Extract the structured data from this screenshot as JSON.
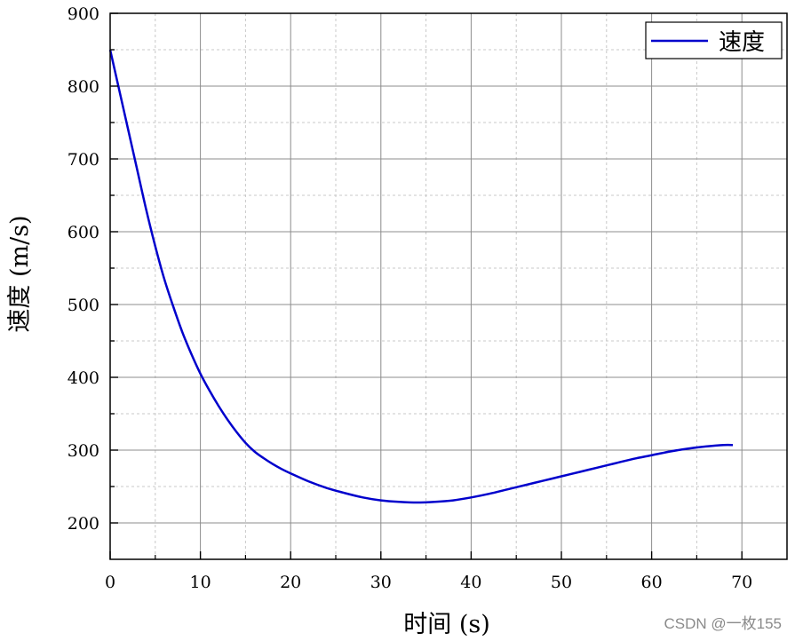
{
  "chart_data": {
    "type": "line",
    "xlabel": "时间 (s)",
    "ylabel": "速度 (m/s)",
    "xlim": [
      0,
      75
    ],
    "ylim": [
      150,
      900
    ],
    "x_ticks": [
      0,
      10,
      20,
      30,
      40,
      50,
      60,
      70
    ],
    "y_ticks": [
      200,
      300,
      400,
      500,
      600,
      700,
      800,
      900
    ],
    "grid": true,
    "legend_position": "top-right",
    "series": [
      {
        "name": "速度",
        "color": "#0000cc",
        "x": [
          0,
          1,
          2,
          3,
          4,
          5,
          6,
          7,
          8,
          9,
          10,
          11,
          12,
          13,
          14,
          15,
          16,
          17,
          18,
          19,
          20,
          22,
          24,
          26,
          28,
          30,
          32,
          34,
          36,
          38,
          40,
          42,
          44,
          46,
          48,
          50,
          52,
          54,
          56,
          58,
          60,
          62,
          64,
          66,
          68,
          69
        ],
        "y": [
          850,
          795,
          740,
          685,
          630,
          580,
          535,
          497,
          462,
          432,
          405,
          382,
          361,
          342,
          325,
          310,
          298,
          289,
          281,
          274,
          268,
          257,
          248,
          241,
          235,
          231,
          229,
          228,
          229,
          231,
          235,
          240,
          246,
          252,
          258,
          264,
          270,
          276,
          282,
          288,
          293,
          298,
          302,
          305,
          307,
          307
        ]
      }
    ]
  },
  "watermark": "CSDN @一枚155"
}
